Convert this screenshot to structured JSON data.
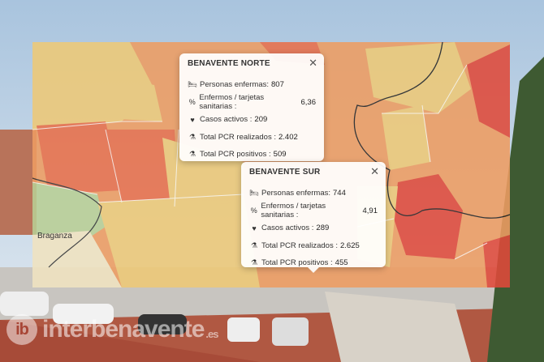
{
  "colors": {
    "light": "#eec977",
    "mid": "#ee9d62",
    "dark": "#e9704a",
    "red": "#e04a3a",
    "green": "#b9cf95"
  },
  "map": {
    "place_label": "Braganza"
  },
  "popups": [
    {
      "title": "BENAVENTE NORTE",
      "rows": [
        {
          "icon": "bed-icon",
          "glyph": "🛏",
          "label": "Personas enfermas:",
          "value": "807"
        },
        {
          "icon": "percent-icon",
          "glyph": "%",
          "label": "Enfermos / tarjetas sanitarias :",
          "value": "6,36"
        },
        {
          "icon": "heartbeat-icon",
          "glyph": "♥",
          "label": "Casos activos :",
          "value": "209"
        },
        {
          "icon": "flask-icon",
          "glyph": "⚗",
          "label": "Total PCR realizados :",
          "value": "2.402"
        },
        {
          "icon": "flask-icon",
          "glyph": "⚗",
          "label": "Total PCR positivos :",
          "value": "509"
        }
      ]
    },
    {
      "title": "BENAVENTE SUR",
      "rows": [
        {
          "icon": "bed-icon",
          "glyph": "🛏",
          "label": "Personas enfermas:",
          "value": "744"
        },
        {
          "icon": "percent-icon",
          "glyph": "%",
          "label": "Enfermos / tarjetas sanitarias :",
          "value": "4,91"
        },
        {
          "icon": "heartbeat-icon",
          "glyph": "♥",
          "label": "Casos activos :",
          "value": "289"
        },
        {
          "icon": "flask-icon",
          "glyph": "⚗",
          "label": "Total PCR realizados :",
          "value": "2.625"
        },
        {
          "icon": "flask-icon",
          "glyph": "⚗",
          "label": "Total PCR positivos :",
          "value": "455"
        }
      ]
    }
  ],
  "close_glyph": "✕",
  "watermark": {
    "logo": "ib",
    "text": "interbenavente",
    "domain": ".es"
  }
}
